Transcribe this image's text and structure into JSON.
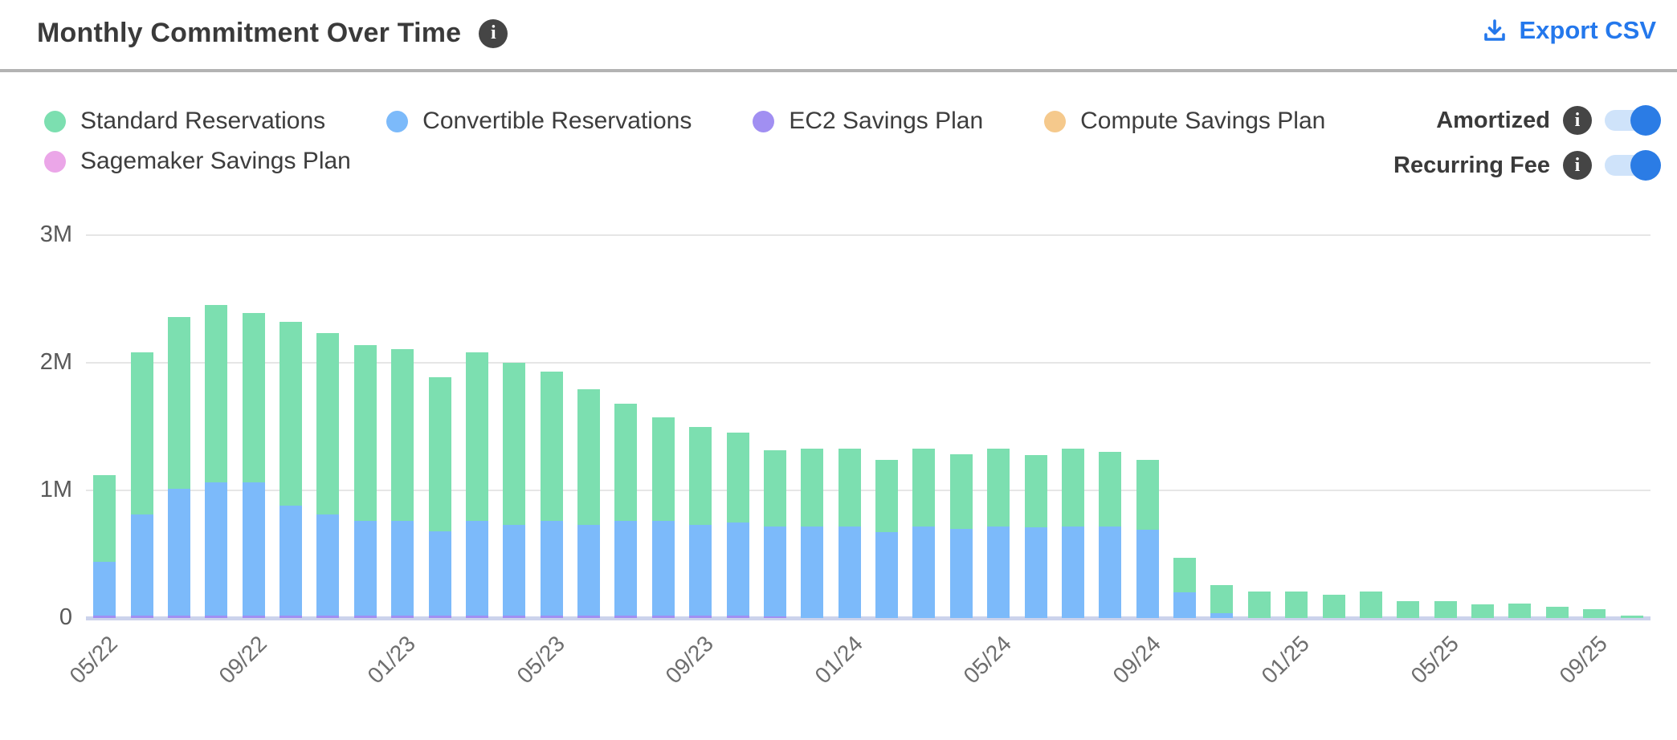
{
  "header": {
    "title": "Monthly Commitment Over Time",
    "title_info_icon": "i",
    "export_label": "Export CSV",
    "accent_color": "#2478ec"
  },
  "toggles": [
    {
      "label": "Amortized",
      "state": "on"
    },
    {
      "label": "Recurring Fee",
      "state": "on"
    }
  ],
  "toggle_colors": {
    "track": "#cfe3fa",
    "knob": "#2b7ce5"
  },
  "legend": {
    "rows": [
      [
        0,
        1,
        2,
        3
      ],
      [
        4
      ]
    ]
  },
  "chart_data": {
    "type": "bar",
    "stacked": true,
    "title": "Monthly Commitment Over Time",
    "xlabel": "",
    "ylabel": "",
    "ylim": [
      0,
      3000000
    ],
    "y_ticks": [
      {
        "label": "0",
        "value": 0
      },
      {
        "label": "1M",
        "value": 1000000
      },
      {
        "label": "2M",
        "value": 2000000
      },
      {
        "label": "3M",
        "value": 3000000
      }
    ],
    "grid": true,
    "legend_position": "top-left",
    "categories": [
      "05/22",
      "06/22",
      "07/22",
      "08/22",
      "09/22",
      "10/22",
      "11/22",
      "12/22",
      "01/23",
      "02/23",
      "03/23",
      "04/23",
      "05/23",
      "06/23",
      "07/23",
      "08/23",
      "09/23",
      "10/23",
      "11/23",
      "12/23",
      "01/24",
      "02/24",
      "03/24",
      "04/24",
      "05/24",
      "06/24",
      "07/24",
      "08/24",
      "09/24",
      "10/24",
      "11/24",
      "12/24",
      "01/25",
      "02/25",
      "03/25",
      "04/25",
      "05/25",
      "06/25",
      "07/25",
      "08/25",
      "09/25",
      "10/25"
    ],
    "shown_tick_labels": [
      "05/22",
      "09/22",
      "01/23",
      "05/23",
      "09/23",
      "01/24",
      "05/24",
      "09/24",
      "01/25",
      "05/25",
      "09/25"
    ],
    "series": [
      {
        "name": "Standard Reservations",
        "color": "#7cdfb0",
        "values": [
          680000,
          1270000,
          1350000,
          1390000,
          1330000,
          1440000,
          1420000,
          1380000,
          1350000,
          1210000,
          1320000,
          1270000,
          1170000,
          1060000,
          920000,
          810000,
          770000,
          700000,
          600000,
          610000,
          610000,
          570000,
          610000,
          580000,
          610000,
          570000,
          610000,
          580000,
          550000,
          270000,
          220000,
          210000,
          205000,
          185000,
          205000,
          135000,
          130000,
          110000,
          115000,
          90000,
          70000,
          20000
        ]
      },
      {
        "name": "Convertible Reservations",
        "color": "#7cbafa",
        "values": [
          420000,
          790000,
          990000,
          1040000,
          1040000,
          860000,
          790000,
          740000,
          740000,
          660000,
          740000,
          710000,
          740000,
          710000,
          740000,
          740000,
          710000,
          730000,
          700000,
          720000,
          720000,
          670000,
          720000,
          700000,
          720000,
          710000,
          720000,
          720000,
          690000,
          200000,
          40000,
          0,
          0,
          0,
          0,
          0,
          0,
          0,
          0,
          0,
          0,
          0
        ]
      },
      {
        "name": "EC2 Savings Plan",
        "color": "#a18ff2",
        "values": [
          20000,
          20000,
          20000,
          20000,
          20000,
          20000,
          20000,
          20000,
          20000,
          20000,
          20000,
          20000,
          20000,
          20000,
          20000,
          20000,
          20000,
          20000,
          15000,
          0,
          0,
          0,
          0,
          0,
          0,
          0,
          0,
          0,
          0,
          0,
          0,
          0,
          0,
          0,
          0,
          0,
          0,
          0,
          0,
          0,
          0,
          0
        ]
      },
      {
        "name": "Compute Savings Plan",
        "color": "#f5c98c",
        "values": [
          0,
          0,
          0,
          0,
          0,
          0,
          0,
          0,
          0,
          0,
          0,
          0,
          0,
          0,
          0,
          0,
          0,
          0,
          0,
          0,
          0,
          0,
          0,
          0,
          0,
          0,
          0,
          0,
          0,
          0,
          0,
          0,
          0,
          0,
          0,
          0,
          0,
          0,
          0,
          0,
          0,
          0
        ]
      },
      {
        "name": "Sagemaker Savings Plan",
        "color": "#eba6e8",
        "values": [
          0,
          0,
          0,
          0,
          0,
          0,
          0,
          0,
          0,
          0,
          0,
          0,
          0,
          0,
          0,
          0,
          0,
          0,
          0,
          0,
          0,
          0,
          0,
          0,
          0,
          0,
          0,
          0,
          0,
          0,
          0,
          0,
          0,
          0,
          0,
          0,
          0,
          0,
          0,
          0,
          0,
          0
        ]
      }
    ],
    "stack_order_bottom_to_top": [
      2,
      1,
      0
    ]
  }
}
